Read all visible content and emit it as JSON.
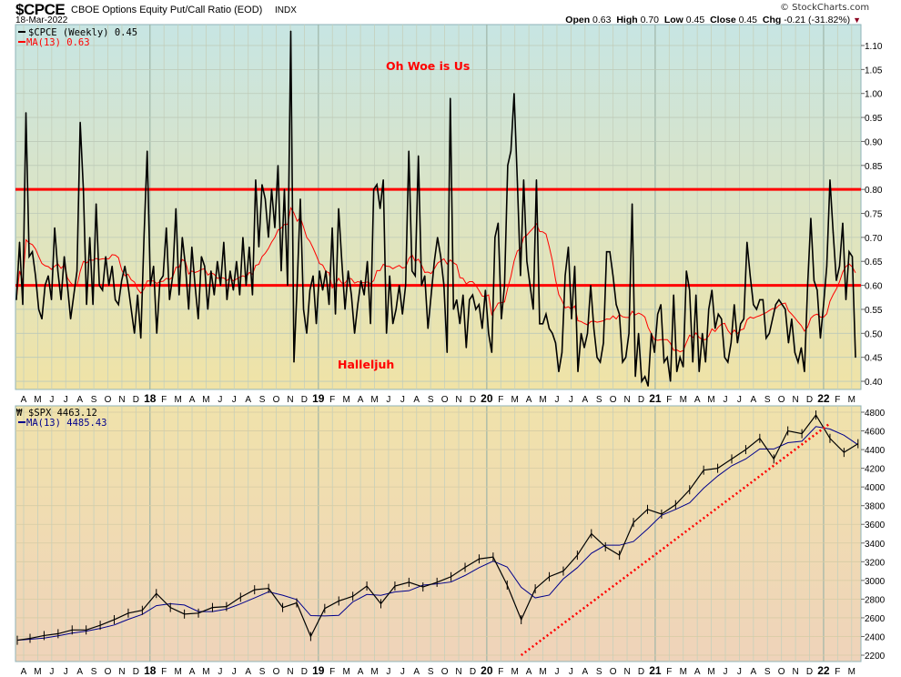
{
  "header": {
    "symbol": "$CPCE",
    "description": "CBOE Options Equity Put/Call Ratio (EOD)",
    "exchange": "INDX",
    "date": "18-Mar-2022",
    "copyright": "© StockCharts.com",
    "open_label": "Open",
    "open": "0.63",
    "high_label": "High",
    "high": "0.70",
    "low_label": "Low",
    "low": "0.45",
    "close_label": "Close",
    "close": "0.45",
    "chg_label": "Chg",
    "chg": "-0.21 (-31.82%)"
  },
  "colors": {
    "cpce": "#000000",
    "cpce_ma": "#ff0000",
    "levels": "#ff0000",
    "spx": "#000000",
    "spx_ma": "#00008b",
    "trend": "#ff0000",
    "down_arrow": "#8b0020"
  },
  "x_axis_labels": [
    "A",
    "M",
    "J",
    "J",
    "A",
    "S",
    "O",
    "N",
    "D",
    "18",
    "F",
    "M",
    "A",
    "M",
    "J",
    "J",
    "A",
    "S",
    "O",
    "N",
    "D",
    "19",
    "F",
    "M",
    "A",
    "M",
    "J",
    "J",
    "A",
    "S",
    "O",
    "N",
    "D",
    "20",
    "F",
    "M",
    "A",
    "M",
    "J",
    "J",
    "A",
    "S",
    "O",
    "N",
    "D",
    "21",
    "F",
    "M",
    "A",
    "M",
    "J",
    "J",
    "A",
    "S",
    "O",
    "N",
    "D",
    "22",
    "F",
    "M"
  ],
  "chart_data": [
    {
      "type": "line",
      "title": "$CPCE (Weekly)",
      "frequency": "weekly",
      "range": "Mar 2017 - 18-Mar-2022",
      "legend": {
        "main": "$CPCE (Weekly) 0.45",
        "ma": "MA(13) 0.63"
      },
      "ma_period": 13,
      "ylim": [
        0.38,
        1.14
      ],
      "yticks": [
        "1.10",
        "1.05",
        "1.00",
        "0.95",
        "0.90",
        "0.85",
        "0.80",
        "0.75",
        "0.70",
        "0.65",
        "0.60",
        "0.55",
        "0.50",
        "0.45",
        "0.40"
      ],
      "horizontal_levels": [
        0.8,
        0.6
      ],
      "annotations": [
        {
          "text": "Oh Woe is Us",
          "at_value": 1.08
        },
        {
          "text": "Halleljuh",
          "at_value": 0.47
        }
      ],
      "values": [
        0.57,
        0.69,
        0.56,
        0.96,
        0.66,
        0.67,
        0.62,
        0.55,
        0.53,
        0.6,
        0.62,
        0.57,
        0.72,
        0.63,
        0.57,
        0.66,
        0.6,
        0.53,
        0.58,
        0.63,
        0.94,
        0.8,
        0.56,
        0.7,
        0.56,
        0.77,
        0.6,
        0.59,
        0.66,
        0.6,
        0.64,
        0.57,
        0.56,
        0.61,
        0.64,
        0.6,
        0.55,
        0.5,
        0.58,
        0.49,
        0.7,
        0.88,
        0.6,
        0.64,
        0.5,
        0.61,
        0.62,
        0.72,
        0.57,
        0.62,
        0.76,
        0.58,
        0.7,
        0.64,
        0.55,
        0.68,
        0.6,
        0.53,
        0.66,
        0.64,
        0.55,
        0.63,
        0.58,
        0.65,
        0.6,
        0.69,
        0.57,
        0.63,
        0.59,
        0.65,
        0.58,
        0.7,
        0.6,
        0.68,
        0.58,
        0.82,
        0.68,
        0.81,
        0.78,
        0.7,
        0.8,
        0.72,
        0.85,
        0.63,
        0.8,
        0.6,
        1.13,
        0.44,
        0.6,
        0.78,
        0.55,
        0.5,
        0.59,
        0.62,
        0.52,
        0.63,
        0.59,
        0.63,
        0.56,
        0.72,
        0.54,
        0.76,
        0.65,
        0.55,
        0.63,
        0.58,
        0.5,
        0.56,
        0.61,
        0.58,
        0.65,
        0.52,
        0.8,
        0.81,
        0.76,
        0.82,
        0.5,
        0.62,
        0.52,
        0.55,
        0.6,
        0.54,
        0.6,
        0.88,
        0.63,
        0.62,
        0.87,
        0.6,
        0.62,
        0.51,
        0.58,
        0.65,
        0.7,
        0.66,
        0.6,
        0.46,
        0.99,
        0.55,
        0.57,
        0.52,
        0.58,
        0.47,
        0.57,
        0.58,
        0.55,
        0.56,
        0.51,
        0.59,
        0.5,
        0.46,
        0.7,
        0.73,
        0.53,
        0.6,
        0.85,
        0.88,
        1.0,
        0.82,
        0.62,
        0.82,
        0.65,
        0.6,
        0.55,
        0.82,
        0.52,
        0.52,
        0.54,
        0.51,
        0.5,
        0.48,
        0.42,
        0.46,
        0.62,
        0.68,
        0.53,
        0.64,
        0.42,
        0.5,
        0.47,
        0.5,
        0.6,
        0.51,
        0.45,
        0.44,
        0.48,
        0.67,
        0.67,
        0.62,
        0.56,
        0.54,
        0.44,
        0.45,
        0.5,
        0.77,
        0.41,
        0.5,
        0.4,
        0.41,
        0.39,
        0.5,
        0.46,
        0.54,
        0.56,
        0.44,
        0.45,
        0.4,
        0.58,
        0.42,
        0.45,
        0.43,
        0.63,
        0.59,
        0.44,
        0.58,
        0.42,
        0.5,
        0.44,
        0.55,
        0.59,
        0.51,
        0.54,
        0.53,
        0.45,
        0.44,
        0.48,
        0.56,
        0.48,
        0.52,
        0.53,
        0.69,
        0.62,
        0.56,
        0.55,
        0.57,
        0.57,
        0.49,
        0.5,
        0.53,
        0.56,
        0.57,
        0.56,
        0.55,
        0.48,
        0.53,
        0.46,
        0.44,
        0.47,
        0.42,
        0.6,
        0.74,
        0.61,
        0.59,
        0.49,
        0.56,
        0.64,
        0.82,
        0.71,
        0.61,
        0.64,
        0.73,
        0.57,
        0.67,
        0.66,
        0.45
      ]
    },
    {
      "type": "line",
      "title": "$SPX",
      "frequency": "monthly (approx.)",
      "legend": {
        "main": "$SPX 4463.12",
        "ma": "MA(13) 4485.43"
      },
      "ylim": [
        2150,
        4850
      ],
      "yticks": [
        "4800",
        "4600",
        "4400",
        "4200",
        "4000",
        "3800",
        "3600",
        "3400",
        "3200",
        "3000",
        "2800",
        "2600",
        "2400",
        "2200"
      ],
      "start_month": "2017-03",
      "closes": [
        2360,
        2380,
        2410,
        2430,
        2470,
        2470,
        2520,
        2580,
        2650,
        2680,
        2860,
        2710,
        2640,
        2650,
        2710,
        2720,
        2820,
        2900,
        2915,
        2710,
        2760,
        2400,
        2700,
        2780,
        2830,
        2940,
        2750,
        2940,
        2980,
        2930,
        2980,
        3040,
        3140,
        3230,
        3250,
        2950,
        2580,
        2910,
        3040,
        3100,
        3270,
        3500,
        3360,
        3270,
        3620,
        3760,
        3710,
        3810,
        3970,
        4180,
        4200,
        4300,
        4400,
        4520,
        4300,
        4600,
        4570,
        4770,
        4520,
        4370,
        4463
      ],
      "trendline": {
        "from": {
          "month": "2020-03",
          "value": 2200
        },
        "to": {
          "month": "2022-01",
          "value": 4680
        },
        "style": "dotted"
      }
    }
  ]
}
